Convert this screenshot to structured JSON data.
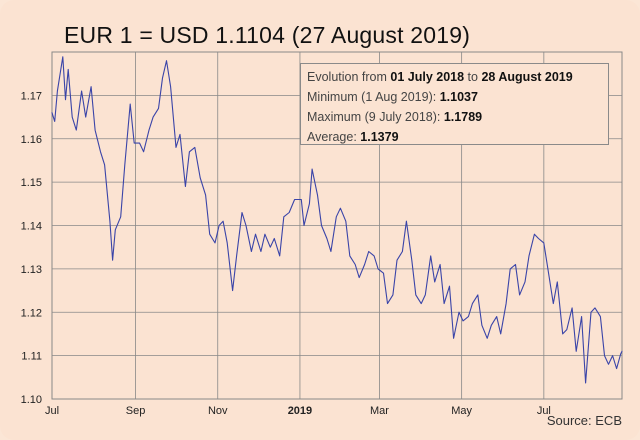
{
  "title": "EUR 1 = USD 1.1104 (27 August 2019)",
  "info": {
    "evolution_prefix": "Evolution from",
    "evolution_start": "01 July 2018",
    "evolution_mid": "to",
    "evolution_end": "28 August 2019",
    "minimum_label": "Minimum (1 Aug 2019):",
    "minimum_value": "1.1037",
    "maximum_label": "Maximum (9 July 2018):",
    "maximum_value": "1.1789",
    "average_label": "Average:",
    "average_value": "1.1379"
  },
  "source": "Source: ECB",
  "colors": {
    "line": "#3a44a8",
    "grid": "#888888",
    "background": "#fbe3d2"
  },
  "chart_data": {
    "type": "line",
    "title": "EUR 1 = USD 1.1104 (27 August 2019)",
    "xlabel": "",
    "ylabel": "",
    "grid": true,
    "ylim": [
      1.1,
      1.18
    ],
    "xlim": [
      "2018-07-01",
      "2019-08-28"
    ],
    "y_ticks": [
      "1.10",
      "1.11",
      "1.12",
      "1.13",
      "1.14",
      "1.15",
      "1.16",
      "1.17"
    ],
    "x_ticks": [
      {
        "label": "Jul",
        "date": "2018-07-01",
        "bold": false
      },
      {
        "label": "Sep",
        "date": "2018-09-01",
        "bold": false
      },
      {
        "label": "Nov",
        "date": "2018-11-01",
        "bold": false
      },
      {
        "label": "2019",
        "date": "2019-01-01",
        "bold": true
      },
      {
        "label": "Mar",
        "date": "2019-03-01",
        "bold": false
      },
      {
        "label": "May",
        "date": "2019-05-01",
        "bold": false
      },
      {
        "label": "Jul",
        "date": "2019-07-01",
        "bold": false
      }
    ],
    "series": [
      {
        "points": [
          [
            "2018-07-01",
            1.166
          ],
          [
            "2018-07-03",
            1.164
          ],
          [
            "2018-07-05",
            1.171
          ],
          [
            "2018-07-09",
            1.1789
          ],
          [
            "2018-07-11",
            1.169
          ],
          [
            "2018-07-13",
            1.176
          ],
          [
            "2018-07-16",
            1.165
          ],
          [
            "2018-07-19",
            1.162
          ],
          [
            "2018-07-23",
            1.171
          ],
          [
            "2018-07-26",
            1.165
          ],
          [
            "2018-07-30",
            1.172
          ],
          [
            "2018-08-02",
            1.162
          ],
          [
            "2018-08-06",
            1.157
          ],
          [
            "2018-08-09",
            1.154
          ],
          [
            "2018-08-13",
            1.141
          ],
          [
            "2018-08-15",
            1.132
          ],
          [
            "2018-08-17",
            1.139
          ],
          [
            "2018-08-21",
            1.142
          ],
          [
            "2018-08-24",
            1.154
          ],
          [
            "2018-08-28",
            1.168
          ],
          [
            "2018-08-31",
            1.159
          ],
          [
            "2018-09-04",
            1.159
          ],
          [
            "2018-09-07",
            1.157
          ],
          [
            "2018-09-11",
            1.162
          ],
          [
            "2018-09-14",
            1.165
          ],
          [
            "2018-09-18",
            1.167
          ],
          [
            "2018-09-21",
            1.174
          ],
          [
            "2018-09-24",
            1.178
          ],
          [
            "2018-09-27",
            1.172
          ],
          [
            "2018-10-01",
            1.158
          ],
          [
            "2018-10-04",
            1.161
          ],
          [
            "2018-10-08",
            1.149
          ],
          [
            "2018-10-11",
            1.157
          ],
          [
            "2018-10-15",
            1.158
          ],
          [
            "2018-10-19",
            1.151
          ],
          [
            "2018-10-23",
            1.147
          ],
          [
            "2018-10-26",
            1.138
          ],
          [
            "2018-10-30",
            1.136
          ],
          [
            "2018-11-02",
            1.14
          ],
          [
            "2018-11-05",
            1.141
          ],
          [
            "2018-11-08",
            1.136
          ],
          [
            "2018-11-12",
            1.125
          ],
          [
            "2018-11-15",
            1.133
          ],
          [
            "2018-11-19",
            1.143
          ],
          [
            "2018-11-22",
            1.14
          ],
          [
            "2018-11-26",
            1.134
          ],
          [
            "2018-11-29",
            1.138
          ],
          [
            "2018-12-03",
            1.134
          ],
          [
            "2018-12-06",
            1.138
          ],
          [
            "2018-12-10",
            1.135
          ],
          [
            "2018-12-13",
            1.137
          ],
          [
            "2018-12-17",
            1.133
          ],
          [
            "2018-12-20",
            1.142
          ],
          [
            "2018-12-24",
            1.143
          ],
          [
            "2018-12-28",
            1.146
          ],
          [
            "2019-01-02",
            1.146
          ],
          [
            "2019-01-04",
            1.14
          ],
          [
            "2019-01-08",
            1.145
          ],
          [
            "2019-01-10",
            1.153
          ],
          [
            "2019-01-14",
            1.147
          ],
          [
            "2019-01-17",
            1.14
          ],
          [
            "2019-01-21",
            1.137
          ],
          [
            "2019-01-24",
            1.134
          ],
          [
            "2019-01-28",
            1.142
          ],
          [
            "2019-01-31",
            1.144
          ],
          [
            "2019-02-04",
            1.141
          ],
          [
            "2019-02-07",
            1.133
          ],
          [
            "2019-02-11",
            1.131
          ],
          [
            "2019-02-14",
            1.128
          ],
          [
            "2019-02-18",
            1.131
          ],
          [
            "2019-02-21",
            1.134
          ],
          [
            "2019-02-25",
            1.133
          ],
          [
            "2019-02-28",
            1.13
          ],
          [
            "2019-03-04",
            1.129
          ],
          [
            "2019-03-07",
            1.122
          ],
          [
            "2019-03-11",
            1.124
          ],
          [
            "2019-03-14",
            1.132
          ],
          [
            "2019-03-18",
            1.134
          ],
          [
            "2019-03-21",
            1.141
          ],
          [
            "2019-03-25",
            1.132
          ],
          [
            "2019-03-28",
            1.124
          ],
          [
            "2019-04-01",
            1.122
          ],
          [
            "2019-04-04",
            1.124
          ],
          [
            "2019-04-08",
            1.133
          ],
          [
            "2019-04-11",
            1.127
          ],
          [
            "2019-04-15",
            1.131
          ],
          [
            "2019-04-18",
            1.122
          ],
          [
            "2019-04-22",
            1.126
          ],
          [
            "2019-04-25",
            1.114
          ],
          [
            "2019-04-29",
            1.12
          ],
          [
            "2019-05-02",
            1.118
          ],
          [
            "2019-05-06",
            1.119
          ],
          [
            "2019-05-09",
            1.122
          ],
          [
            "2019-05-13",
            1.124
          ],
          [
            "2019-05-16",
            1.117
          ],
          [
            "2019-05-20",
            1.114
          ],
          [
            "2019-05-23",
            1.117
          ],
          [
            "2019-05-27",
            1.119
          ],
          [
            "2019-05-30",
            1.115
          ],
          [
            "2019-06-03",
            1.122
          ],
          [
            "2019-06-06",
            1.13
          ],
          [
            "2019-06-10",
            1.131
          ],
          [
            "2019-06-13",
            1.124
          ],
          [
            "2019-06-17",
            1.127
          ],
          [
            "2019-06-20",
            1.133
          ],
          [
            "2019-06-24",
            1.138
          ],
          [
            "2019-06-27",
            1.137
          ],
          [
            "2019-07-01",
            1.136
          ],
          [
            "2019-07-04",
            1.13
          ],
          [
            "2019-07-08",
            1.122
          ],
          [
            "2019-07-11",
            1.127
          ],
          [
            "2019-07-15",
            1.115
          ],
          [
            "2019-07-18",
            1.116
          ],
          [
            "2019-07-22",
            1.121
          ],
          [
            "2019-07-25",
            1.111
          ],
          [
            "2019-07-29",
            1.119
          ],
          [
            "2019-08-01",
            1.1037
          ],
          [
            "2019-08-05",
            1.12
          ],
          [
            "2019-08-08",
            1.121
          ],
          [
            "2019-08-12",
            1.119
          ],
          [
            "2019-08-15",
            1.11
          ],
          [
            "2019-08-18",
            1.108
          ],
          [
            "2019-08-21",
            1.11
          ],
          [
            "2019-08-24",
            1.107
          ],
          [
            "2019-08-27",
            1.1104
          ],
          [
            "2019-08-28",
            1.111
          ]
        ]
      }
    ]
  }
}
